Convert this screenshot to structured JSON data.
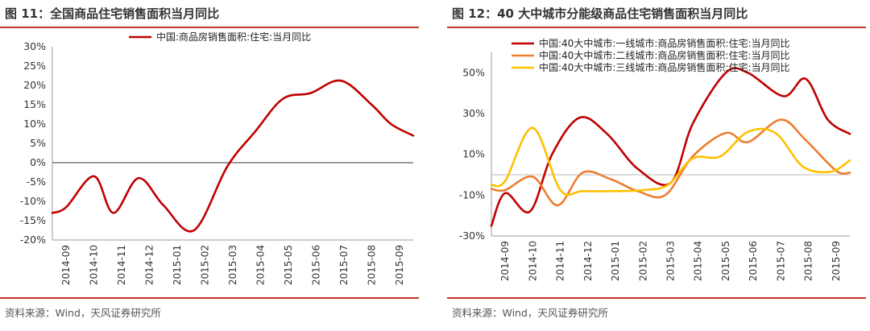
{
  "panels": [
    {
      "title": "图 11：全国商品住宅销售面积当月同比",
      "source": "资料来源：Wind，天风证券研究所"
    },
    {
      "title": "图 12：40 大中城市分能级商品住宅销售面积当月同比",
      "source": "资料来源：Wind，天风证券研究所"
    }
  ],
  "chart_data": [
    {
      "type": "line",
      "x": [
        "2014-09",
        "2014-10",
        "2014-11",
        "2014-12",
        "2015-01",
        "2015-02",
        "2015-03",
        "2015-04",
        "2015-05",
        "2015-06",
        "2015-07",
        "2015-08",
        "2015-09"
      ],
      "ylim": [
        -20,
        30
      ],
      "yticks": [
        "30%",
        "25%",
        "20%",
        "15%",
        "10%",
        "5%",
        "0%",
        "-5%",
        "-10%",
        "-15%",
        "-20%"
      ],
      "ytick_values": [
        30,
        25,
        20,
        15,
        10,
        5,
        0,
        -5,
        -10,
        -15,
        -20
      ],
      "grid": false,
      "legend": "top-center",
      "series": [
        {
          "name": "中国:商品房销售面积:住宅:当月同比",
          "color": "#c00000",
          "points": [
            [
              0,
              -13
            ],
            [
              0.5,
              -11.5
            ],
            [
              1.5,
              -3.5
            ],
            [
              2.2,
              -13
            ],
            [
              3.1,
              -4
            ],
            [
              4,
              -11
            ],
            [
              5.1,
              -17.5
            ],
            [
              6.3,
              -1
            ],
            [
              7.3,
              8
            ],
            [
              8.3,
              16.5
            ],
            [
              9.3,
              18
            ],
            [
              10.4,
              21.2
            ],
            [
              11.5,
              15
            ],
            [
              12.2,
              10
            ],
            [
              13,
              7
            ]
          ]
        }
      ]
    },
    {
      "type": "line",
      "x": [
        "2014-09",
        "2014-10",
        "2014-11",
        "2014-12",
        "2015-01",
        "2015-02",
        "2015-03",
        "2015-04",
        "2015-05",
        "2015-06",
        "2015-07",
        "2015-08",
        "2015-09"
      ],
      "ylim": [
        -30,
        60
      ],
      "yticks": [
        "50%",
        "30%",
        "10%",
        "-10%",
        "-30%"
      ],
      "ytick_values": [
        50,
        30,
        10,
        -10,
        -30
      ],
      "grid": false,
      "legend": "top-left",
      "series": [
        {
          "name": "中国:40大中城市:一线城市:商品房销售面积:住宅:当月同比",
          "color": "#c00000",
          "points": [
            [
              0,
              -25
            ],
            [
              0.5,
              -9
            ],
            [
              1.4,
              -18
            ],
            [
              2.2,
              10
            ],
            [
              3.2,
              28
            ],
            [
              4.2,
              20
            ],
            [
              5.3,
              3
            ],
            [
              6.5,
              -4
            ],
            [
              7.3,
              25
            ],
            [
              8.5,
              50
            ],
            [
              9.3,
              50
            ],
            [
              10.6,
              38.5
            ],
            [
              11.4,
              47
            ],
            [
              12.2,
              27
            ],
            [
              13,
              20
            ]
          ]
        },
        {
          "name": "中国:40大中城市:二线城市:商品房销售面积:住宅:当月同比",
          "color": "#ed7d31",
          "points": [
            [
              0,
              -7
            ],
            [
              0.5,
              -7.5
            ],
            [
              1.5,
              -1
            ],
            [
              2.4,
              -15
            ],
            [
              3.3,
              1
            ],
            [
              4.3,
              -2
            ],
            [
              5.3,
              -8
            ],
            [
              6.3,
              -10
            ],
            [
              7.3,
              9
            ],
            [
              8.5,
              20.5
            ],
            [
              9.3,
              16
            ],
            [
              10.5,
              27
            ],
            [
              11.4,
              17
            ],
            [
              12.5,
              2
            ],
            [
              13,
              1
            ]
          ]
        },
        {
          "name": "中国:40大中城市:三线城市:商品房销售面积:住宅:当月同比",
          "color": "#ffc000",
          "points": [
            [
              0,
              -5
            ],
            [
              0.5,
              -3
            ],
            [
              1.5,
              23
            ],
            [
              2.5,
              -7.5
            ],
            [
              3.3,
              -8
            ],
            [
              4.5,
              -8
            ],
            [
              5.5,
              -7.5
            ],
            [
              6.4,
              -5
            ],
            [
              7.3,
              8
            ],
            [
              8.3,
              9
            ],
            [
              9.3,
              21
            ],
            [
              10.3,
              20.5
            ],
            [
              11.3,
              4
            ],
            [
              12.3,
              1.5
            ],
            [
              13,
              7
            ]
          ]
        }
      ]
    }
  ]
}
